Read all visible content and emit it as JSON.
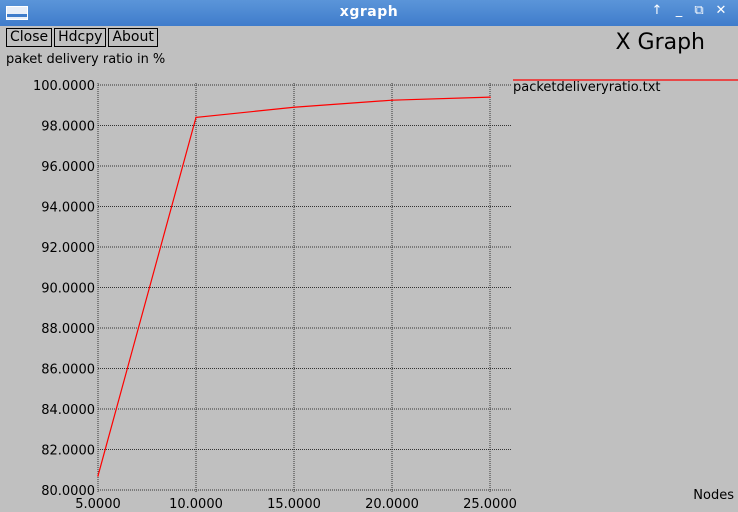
{
  "window": {
    "title": "xgraph",
    "controls": {
      "up_glyph": "↑",
      "minimize_glyph": "_",
      "maximize_glyph": "⧉",
      "close_glyph": "✕"
    }
  },
  "toolbar": {
    "close_label": "Close",
    "hdcpy_label": "Hdcpy",
    "about_label": "About"
  },
  "app_title": "X Graph",
  "chart_data": {
    "type": "line",
    "ylabel": "paket delivery ratio in %",
    "xlabel": "Nodes",
    "xlim": [
      5,
      25
    ],
    "ylim": [
      80,
      100
    ],
    "x_ticks": [
      5,
      10,
      15,
      20,
      25
    ],
    "y_ticks": [
      80,
      82,
      84,
      86,
      88,
      90,
      92,
      94,
      96,
      98,
      100
    ],
    "x_tick_labels": [
      "5.0000",
      "10.0000",
      "15.0000",
      "20.0000",
      "25.0000"
    ],
    "y_tick_labels": [
      "80.0000",
      "82.0000",
      "84.0000",
      "86.0000",
      "88.0000",
      "90.0000",
      "92.0000",
      "94.0000",
      "96.0000",
      "98.0000",
      "100.0000"
    ],
    "grid": true,
    "legend_position": "top-right",
    "series": [
      {
        "name": "packetdeliveryratio.txt",
        "color": "#ff0000",
        "x": [
          5,
          10,
          15,
          20,
          25
        ],
        "y": [
          80.7,
          98.4,
          98.9,
          99.25,
          99.4
        ]
      }
    ]
  }
}
